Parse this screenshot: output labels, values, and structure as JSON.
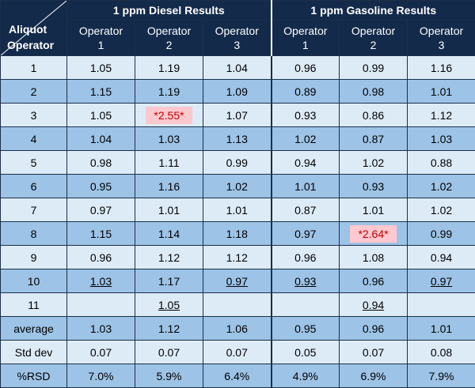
{
  "header": {
    "corner_top": "Aliquot",
    "corner_bottom": "Operator",
    "groups": [
      "1 ppm Diesel Results",
      "1 ppm Gasoline Results"
    ],
    "operator_word": "Operator",
    "operators": [
      "1",
      "2",
      "3",
      "1",
      "2",
      "3"
    ]
  },
  "rows": [
    {
      "label": "1",
      "values": [
        "1.05",
        "1.19",
        "1.04",
        "0.96",
        "0.99",
        "1.16"
      ]
    },
    {
      "label": "2",
      "values": [
        "1.15",
        "1.19",
        "1.09",
        "0.89",
        "0.98",
        "1.01"
      ]
    },
    {
      "label": "3",
      "values": [
        "1.05",
        "*2.55*",
        "1.07",
        "0.93",
        "0.86",
        "1.12"
      ]
    },
    {
      "label": "4",
      "values": [
        "1.04",
        "1.03",
        "1.13",
        "1.02",
        "0.87",
        "1.03"
      ]
    },
    {
      "label": "5",
      "values": [
        "0.98",
        "1.11",
        "0.99",
        "0.94",
        "1.02",
        "0.88"
      ]
    },
    {
      "label": "6",
      "values": [
        "0.95",
        "1.16",
        "1.02",
        "1.01",
        "0.93",
        "1.02"
      ]
    },
    {
      "label": "7",
      "values": [
        "0.97",
        "1.01",
        "1.01",
        "0.87",
        "1.01",
        "1.02"
      ]
    },
    {
      "label": "8",
      "values": [
        "1.15",
        "1.14",
        "1.18",
        "0.97",
        "*2.64*",
        "0.99"
      ]
    },
    {
      "label": "9",
      "values": [
        "0.96",
        "1.12",
        "1.12",
        "0.96",
        "1.08",
        "0.94"
      ]
    },
    {
      "label": "10",
      "values": [
        "1.03",
        "1.17",
        "0.97",
        "0.93",
        "0.96",
        "0.97"
      ]
    },
    {
      "label": "11",
      "values": [
        "",
        "1.05",
        "",
        "",
        "0.94",
        ""
      ]
    }
  ],
  "stats": [
    {
      "label": "average",
      "values": [
        "1.03",
        "1.12",
        "1.06",
        "0.95",
        "0.96",
        "1.01"
      ]
    },
    {
      "label": "Std dev",
      "values": [
        "0.07",
        "0.07",
        "0.07",
        "0.05",
        "0.07",
        "0.08"
      ]
    },
    {
      "label": "%RSD",
      "values": [
        "7.0%",
        "5.9%",
        "6.4%",
        "4.9%",
        "6.9%",
        "7.9%"
      ]
    }
  ],
  "styles": {
    "header_bg": "#132a4a",
    "row_light": "#ddebf7",
    "row_dark": "#9dc3e6",
    "outlier_fill": "#ffc7ce",
    "outlier_text": "#c00000"
  }
}
